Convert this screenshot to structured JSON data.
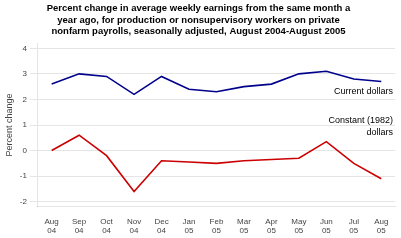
{
  "chart_data": {
    "type": "line",
    "title": "Percent change in average weekly earnings from the same month a\nyear ago, for production or nonsupervisory workers on private\nnonfarm payrolls, seasonally adjusted, August 2004-August 2005",
    "ylabel": "Percent change",
    "categories": [
      "Aug\n04",
      "Sep\n04",
      "Oct\n04",
      "Nov\n04",
      "Dec\n04",
      "Jan\n05",
      "Feb\n05",
      "Mar\n05",
      "Apr\n05",
      "May\n05",
      "Jun\n05",
      "Jul\n05",
      "Aug\n05"
    ],
    "series": [
      {
        "name": "Current dollars",
        "color": "#00008B",
        "values": [
          2.6,
          3.0,
          2.9,
          2.2,
          2.9,
          2.4,
          2.3,
          2.5,
          2.6,
          3.0,
          3.1,
          2.8,
          2.7
        ]
      },
      {
        "name": "Constant (1982)\ndollars",
        "color": "#CC0000",
        "values": [
          0.0,
          0.6,
          -0.2,
          -1.6,
          -0.4,
          -0.45,
          -0.5,
          -0.4,
          -0.35,
          -0.3,
          0.35,
          -0.5,
          -1.1
        ]
      }
    ],
    "ylim": [
      -2.2,
      4.2
    ],
    "yticks": [
      -2,
      -1,
      0,
      1,
      2,
      3,
      4
    ],
    "grid": true
  }
}
